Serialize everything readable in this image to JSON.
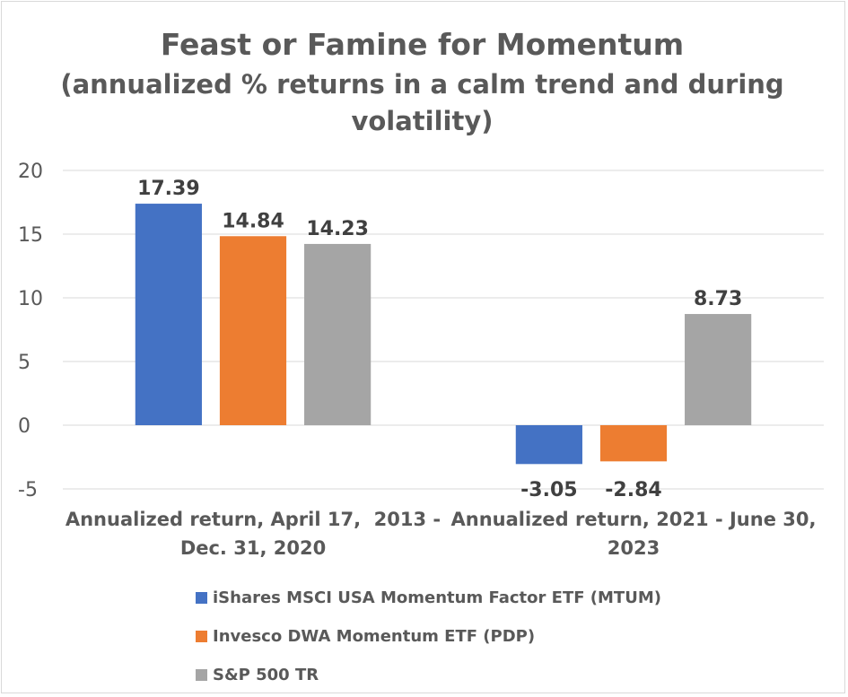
{
  "chart_data": {
    "type": "bar",
    "title": "Feast or Famine for Momentum",
    "subtitle_line1": "(annualized % returns in a calm trend and during",
    "subtitle_line2": "volatility)",
    "categories": [
      "Annualized return, April 17,  2013 -\nDec. 31, 2020",
      "Annualized return, 2021 - June 30,\n2023"
    ],
    "series": [
      {
        "name": "iShares MSCI USA Momentum Factor ETF (MTUM)",
        "color": "#4472c4",
        "values": [
          17.39,
          -3.05
        ]
      },
      {
        "name": "Invesco DWA Momentum ETF (PDP)",
        "color": "#ed7d31",
        "values": [
          14.84,
          -2.84
        ]
      },
      {
        "name": "S&P 500 TR",
        "color": "#a5a5a5",
        "values": [
          14.23,
          8.73
        ]
      }
    ],
    "data_labels": [
      [
        "17.39",
        "-3.05"
      ],
      [
        "14.84",
        "-2.84"
      ],
      [
        "14.23",
        "8.73"
      ]
    ],
    "ylim": [
      -5,
      20
    ],
    "yticks": [
      "-5",
      "0",
      "5",
      "10",
      "15",
      "20"
    ],
    "grid": true,
    "legend_position": "bottom"
  }
}
